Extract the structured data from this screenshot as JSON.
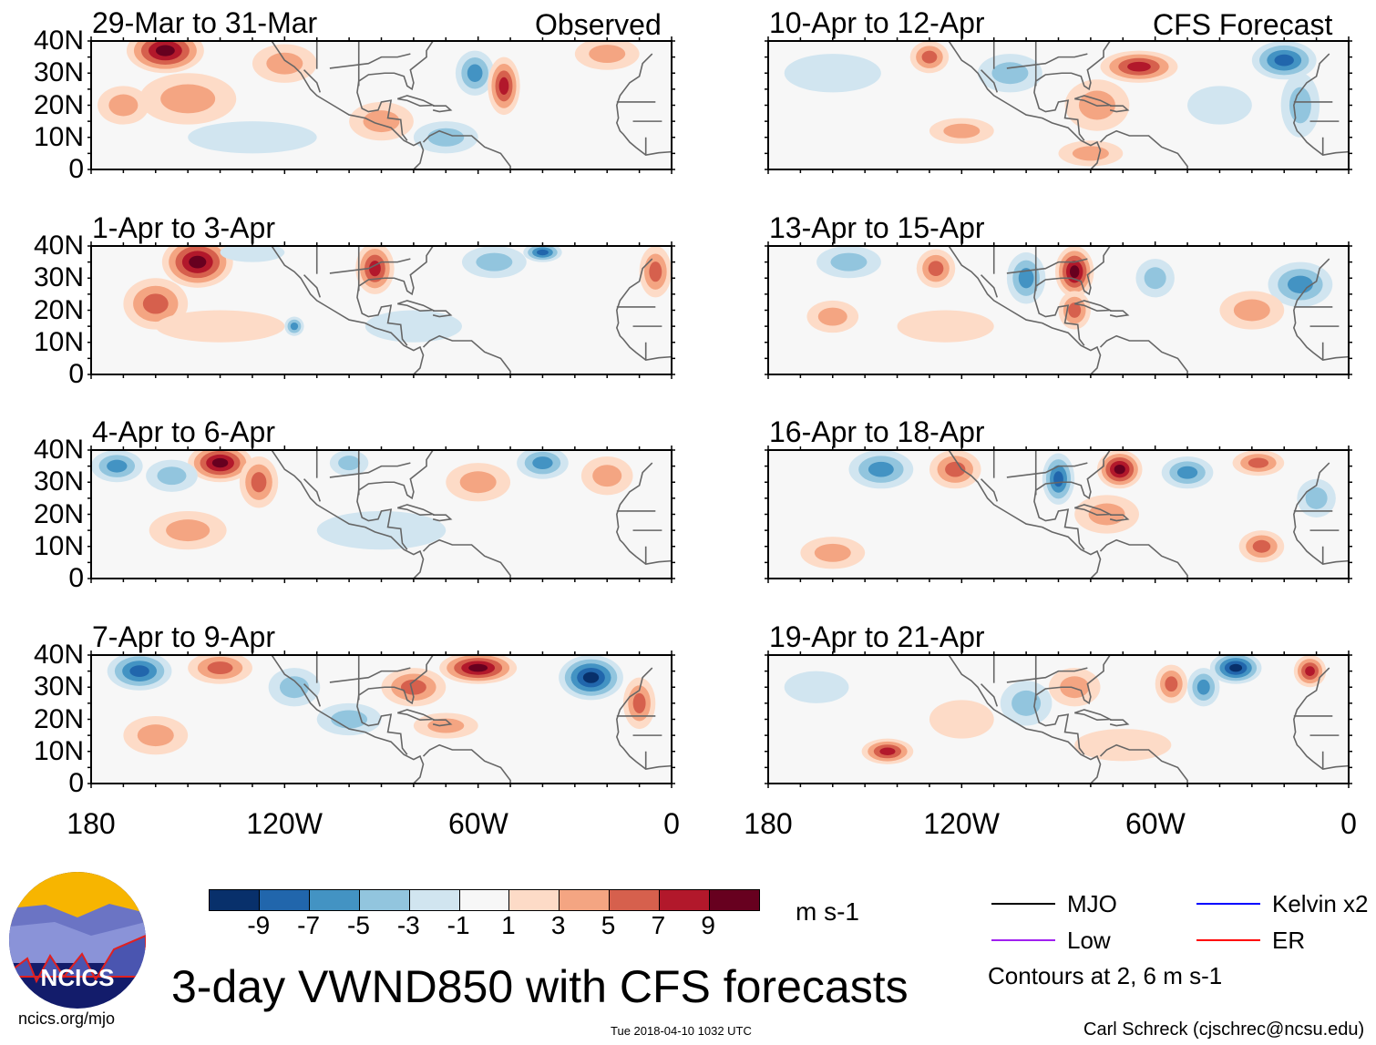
{
  "title": "3-day VWND850 with CFS forecasts",
  "logo_text": "NCICS",
  "footer": {
    "left": "ncics.org/mjo",
    "center": "Tue 2018-04-10 1032 UTC",
    "right": "Carl Schreck (cjschrec@ncsu.edu)"
  },
  "column_labels": {
    "left": "Observed",
    "right": "CFS Forecast"
  },
  "lat_labels": [
    "40N",
    "30N",
    "20N",
    "10N",
    "0"
  ],
  "lon_labels": [
    "180",
    "120W",
    "60W",
    "0"
  ],
  "colorbar": {
    "unit": "m s-1",
    "labels": [
      "-9",
      "-7",
      "-5",
      "-3",
      "-1",
      "1",
      "3",
      "5",
      "7",
      "9"
    ],
    "colors": [
      "#08306b",
      "#2166ac",
      "#4393c3",
      "#92c5de",
      "#d1e5f0",
      "#f7f7f7",
      "#fddbc7",
      "#f4a582",
      "#d6604d",
      "#b2182b",
      "#67001f"
    ]
  },
  "legend": {
    "items": [
      {
        "label": "MJO",
        "color": "#000000"
      },
      {
        "label": "Kelvin x2",
        "color": "#0000ff"
      },
      {
        "label": "Low",
        "color": "#a020f0"
      },
      {
        "label": "ER",
        "color": "#ff0000"
      }
    ],
    "note": "Contours at 2, 6 m s-1"
  },
  "chart_data": {
    "type": "heatmap",
    "variable": "850 hPa meridional wind anomaly (m s-1), 3-day means",
    "lon_range": [
      -180,
      0
    ],
    "lat_range": [
      0,
      40
    ],
    "blob_format": "[lon, lat, value, lon_halfwidth, lat_halfwidth]",
    "panels": [
      {
        "label": "29-Mar to 31-Mar",
        "col": "left",
        "blobs": [
          [
            -157,
            37,
            9,
            12,
            7
          ],
          [
            -150,
            22,
            3,
            15,
            8
          ],
          [
            -170,
            20,
            3,
            8,
            6
          ],
          [
            -61,
            30,
            -5,
            6,
            7
          ],
          [
            -52,
            26,
            7,
            5,
            9
          ],
          [
            -120,
            33,
            3,
            10,
            6
          ],
          [
            -90,
            15,
            3,
            10,
            6
          ],
          [
            -130,
            10,
            -1,
            20,
            5
          ],
          [
            -70,
            10,
            -3,
            10,
            5
          ],
          [
            -20,
            36,
            3,
            10,
            5
          ]
        ]
      },
      {
        "label": "1-Apr to 3-Apr",
        "col": "left",
        "blobs": [
          [
            -147,
            35,
            9,
            11,
            8
          ],
          [
            -160,
            22,
            5,
            10,
            8
          ],
          [
            -92,
            33,
            7,
            6,
            8
          ],
          [
            -130,
            38,
            -1,
            10,
            3
          ],
          [
            -117,
            15,
            -5,
            3,
            3
          ],
          [
            -55,
            35,
            -3,
            10,
            5
          ],
          [
            -40,
            38,
            -7,
            6,
            3
          ],
          [
            -5,
            32,
            5,
            5,
            8
          ],
          [
            -140,
            15,
            1,
            20,
            5
          ],
          [
            -80,
            15,
            -1,
            15,
            5
          ]
        ]
      },
      {
        "label": "4-Apr to 6-Apr",
        "col": "left",
        "blobs": [
          [
            -140,
            36,
            9,
            10,
            6
          ],
          [
            -128,
            30,
            5,
            6,
            8
          ],
          [
            -172,
            35,
            -5,
            8,
            5
          ],
          [
            -155,
            32,
            -3,
            8,
            5
          ],
          [
            -100,
            36,
            -3,
            6,
            4
          ],
          [
            -60,
            30,
            3,
            10,
            6
          ],
          [
            -40,
            36,
            -5,
            8,
            5
          ],
          [
            -20,
            32,
            3,
            8,
            6
          ],
          [
            -90,
            15,
            -1,
            20,
            6
          ],
          [
            -150,
            15,
            3,
            12,
            6
          ]
        ]
      },
      {
        "label": "7-Apr to 9-Apr",
        "col": "left",
        "blobs": [
          [
            -165,
            35,
            -7,
            10,
            6
          ],
          [
            -140,
            36,
            5,
            10,
            5
          ],
          [
            -117,
            30,
            -3,
            8,
            6
          ],
          [
            -60,
            36,
            9,
            12,
            5
          ],
          [
            -80,
            30,
            5,
            10,
            6
          ],
          [
            -25,
            33,
            -9,
            10,
            7
          ],
          [
            -10,
            25,
            5,
            5,
            8
          ],
          [
            -100,
            20,
            -3,
            10,
            5
          ],
          [
            -70,
            18,
            3,
            10,
            4
          ],
          [
            -160,
            15,
            3,
            10,
            6
          ]
        ]
      },
      {
        "label": "10-Apr to 12-Apr",
        "col": "right",
        "blobs": [
          [
            -65,
            32,
            7,
            12,
            5
          ],
          [
            -78,
            20,
            3,
            10,
            8
          ],
          [
            -20,
            34,
            -7,
            10,
            6
          ],
          [
            -15,
            20,
            -3,
            6,
            10
          ],
          [
            -130,
            35,
            5,
            6,
            5
          ],
          [
            -105,
            30,
            -3,
            10,
            6
          ],
          [
            -160,
            30,
            -1,
            15,
            6
          ],
          [
            -120,
            12,
            3,
            10,
            4
          ],
          [
            -80,
            5,
            3,
            10,
            4
          ],
          [
            -40,
            20,
            -1,
            10,
            6
          ]
        ]
      },
      {
        "label": "13-Apr to 15-Apr",
        "col": "right",
        "blobs": [
          [
            -85,
            32,
            9,
            6,
            8
          ],
          [
            -85,
            20,
            5,
            5,
            6
          ],
          [
            -100,
            30,
            -5,
            6,
            8
          ],
          [
            -128,
            33,
            5,
            6,
            6
          ],
          [
            -155,
            35,
            -3,
            10,
            5
          ],
          [
            -60,
            30,
            -3,
            6,
            6
          ],
          [
            -15,
            28,
            -5,
            10,
            7
          ],
          [
            -30,
            20,
            3,
            10,
            6
          ],
          [
            -160,
            18,
            3,
            8,
            5
          ],
          [
            -125,
            15,
            1,
            15,
            5
          ]
        ]
      },
      {
        "label": "16-Apr to 18-Apr",
        "col": "right",
        "blobs": [
          [
            -71,
            34,
            9,
            7,
            6
          ],
          [
            -90,
            31,
            -7,
            5,
            8
          ],
          [
            -145,
            34,
            -5,
            10,
            6
          ],
          [
            -122,
            34,
            5,
            8,
            6
          ],
          [
            -50,
            33,
            -5,
            8,
            5
          ],
          [
            -28,
            36,
            5,
            8,
            4
          ],
          [
            -27,
            10,
            5,
            7,
            5
          ],
          [
            -160,
            8,
            3,
            10,
            5
          ],
          [
            -75,
            20,
            3,
            10,
            6
          ],
          [
            -10,
            25,
            -3,
            6,
            6
          ]
        ]
      },
      {
        "label": "19-Apr to 21-Apr",
        "col": "right",
        "blobs": [
          [
            -143,
            10,
            7,
            8,
            4
          ],
          [
            -35,
            36,
            -9,
            8,
            5
          ],
          [
            -55,
            31,
            5,
            5,
            6
          ],
          [
            -45,
            30,
            -5,
            5,
            6
          ],
          [
            -12,
            35,
            7,
            5,
            5
          ],
          [
            -100,
            25,
            -3,
            8,
            7
          ],
          [
            -85,
            30,
            3,
            8,
            6
          ],
          [
            -165,
            30,
            -1,
            10,
            5
          ],
          [
            -70,
            12,
            1,
            15,
            5
          ],
          [
            -120,
            20,
            1,
            10,
            6
          ]
        ]
      }
    ]
  }
}
